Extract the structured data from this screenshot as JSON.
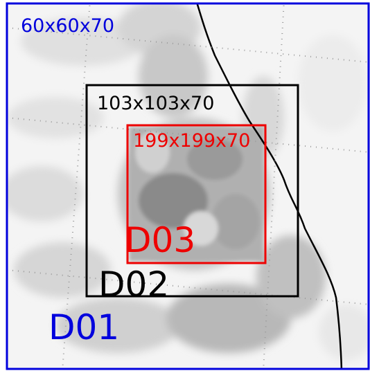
{
  "domains": [
    {
      "name": "D01",
      "grid": "60x60x70"
    },
    {
      "name": "D02",
      "grid": "103x103x70"
    },
    {
      "name": "D03",
      "grid": "199x199x70"
    }
  ]
}
